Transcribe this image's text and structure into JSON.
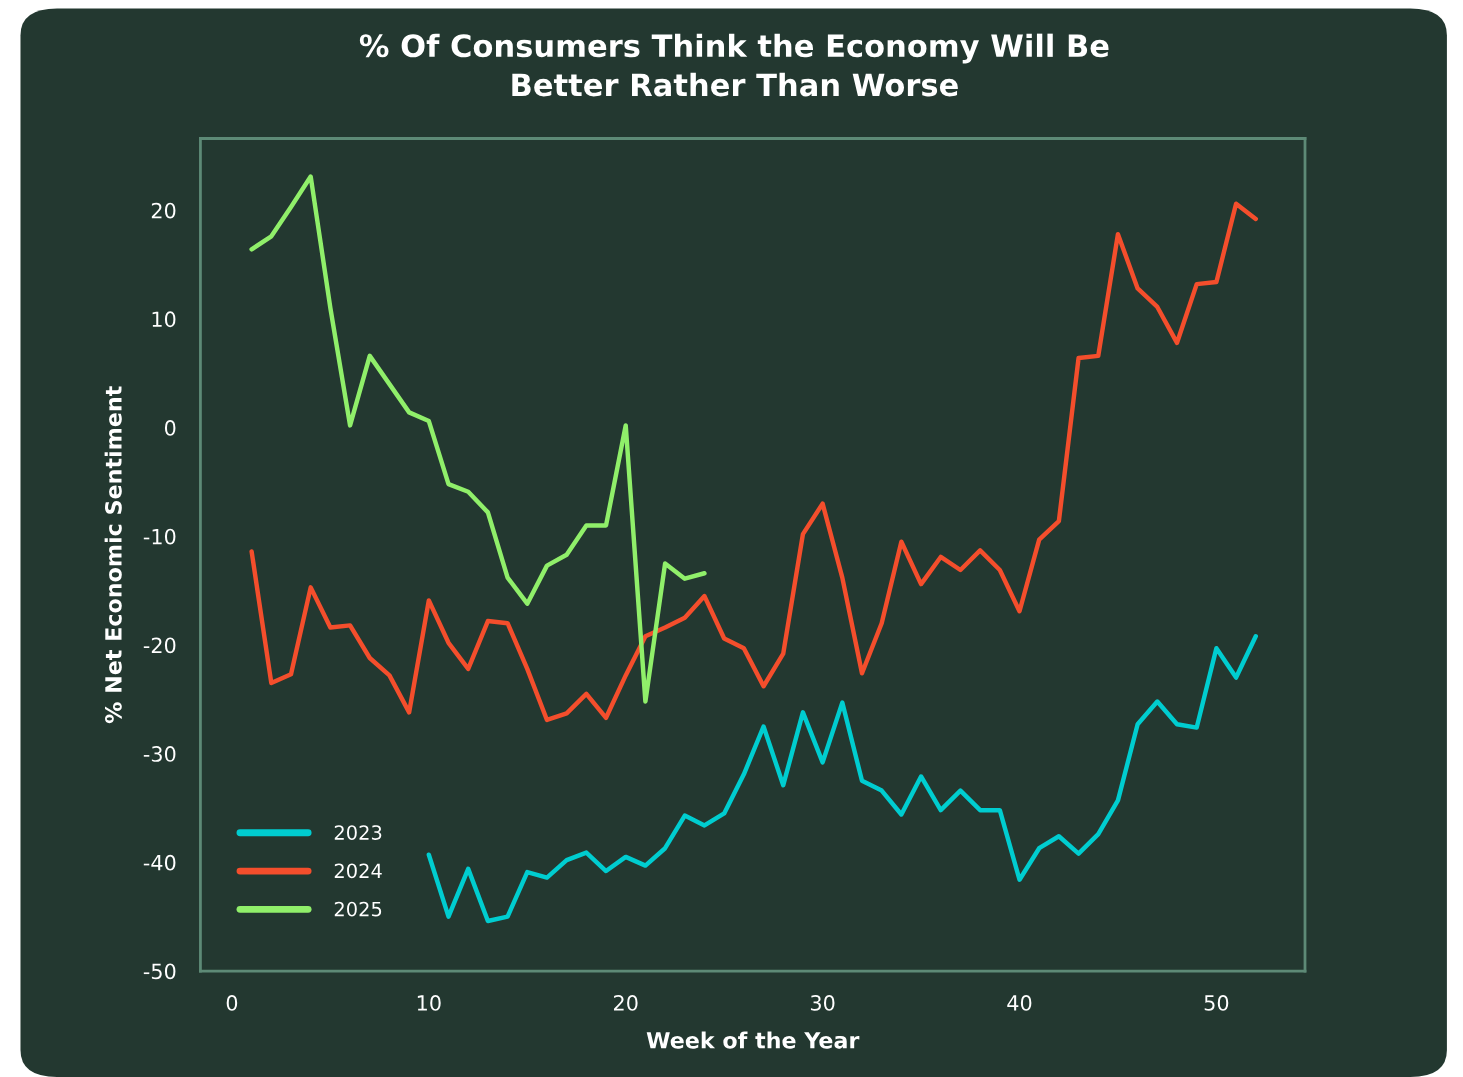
{
  "chart_data": {
    "type": "line",
    "title": "% Of Consumers Think the Economy Will Be\nBetter Rather Than Worse",
    "xlabel": "Week of the Year",
    "ylabel": "% Net Economic Sentiment",
    "series": [
      {
        "name": "2023",
        "color": "#00cdd0",
        "x": [
          10,
          11,
          12,
          13,
          14,
          15,
          16,
          17,
          18,
          19,
          20,
          21,
          22,
          23,
          24,
          25,
          26,
          27,
          28,
          29,
          30,
          31,
          32,
          33,
          34,
          35,
          36,
          37,
          38,
          39,
          40,
          41,
          42,
          43,
          44,
          45,
          46,
          47,
          48,
          49,
          50,
          51,
          52
        ],
        "values": [
          -39.3,
          -45.0,
          -40.6,
          -45.4,
          -45.0,
          -40.9,
          -41.4,
          -39.8,
          -39.1,
          -40.8,
          -39.5,
          -40.3,
          -38.7,
          -35.7,
          -36.6,
          -35.5,
          -31.9,
          -27.5,
          -32.9,
          -26.2,
          -30.8,
          -25.3,
          -32.5,
          -33.4,
          -35.6,
          -32.1,
          -35.2,
          -33.4,
          -35.2,
          -35.2,
          -41.6,
          -38.7,
          -37.6,
          -39.2,
          -37.4,
          -34.3,
          -27.3,
          -25.2,
          -27.3,
          -27.6,
          -20.3,
          -23.0,
          -19.2
        ]
      },
      {
        "name": "2024",
        "color": "#f44e2c",
        "x": [
          1,
          2,
          3,
          4,
          5,
          6,
          7,
          8,
          9,
          10,
          11,
          12,
          13,
          14,
          15,
          16,
          17,
          18,
          19,
          20,
          21,
          22,
          23,
          24,
          25,
          26,
          27,
          28,
          29,
          30,
          31,
          32,
          33,
          34,
          35,
          36,
          37,
          38,
          39,
          40,
          41,
          42,
          43,
          44,
          45,
          46,
          47,
          48,
          49,
          50,
          51,
          52
        ],
        "values": [
          -11.4,
          -23.5,
          -22.7,
          -14.7,
          -18.4,
          -18.2,
          -21.2,
          -22.8,
          -26.2,
          -15.9,
          -19.8,
          -22.2,
          -17.8,
          -18.0,
          -22.2,
          -26.9,
          -26.3,
          -24.5,
          -26.7,
          -22.8,
          -19.2,
          -18.4,
          -17.5,
          -15.5,
          -19.4,
          -20.3,
          -23.8,
          -20.8,
          -9.8,
          -7.0,
          -13.8,
          -22.6,
          -18.0,
          -10.5,
          -14.4,
          -11.9,
          -13.1,
          -11.3,
          -13.1,
          -16.9,
          -10.3,
          -8.6,
          6.4,
          6.6,
          17.8,
          12.8,
          11.1,
          7.8,
          13.2,
          13.4,
          20.6,
          19.2
        ]
      },
      {
        "name": "2025",
        "color": "#90ef6a",
        "x": [
          1,
          2,
          3,
          4,
          5,
          6,
          7,
          8,
          9,
          10,
          11,
          12,
          13,
          14,
          15,
          16,
          17,
          18,
          19,
          20,
          21,
          22,
          23,
          24
        ],
        "values": [
          16.4,
          17.6,
          20.3,
          23.1,
          11.0,
          0.2,
          6.6,
          4.0,
          1.4,
          0.6,
          -5.2,
          -5.9,
          -7.8,
          -13.8,
          -16.2,
          -12.7,
          -11.7,
          -9.0,
          -9.0,
          0.2,
          -25.2,
          -12.5,
          -13.9,
          -13.4
        ]
      }
    ],
    "xlim": [
      -1.6,
      54.5
    ],
    "ylim": [
      -50,
      26.6
    ],
    "xticks": [
      0,
      10,
      20,
      30,
      40,
      50
    ],
    "yticks": [
      -50,
      -40,
      -30,
      -20,
      -10,
      0,
      10,
      20
    ],
    "grid": false,
    "legend": "bottom left",
    "line_style": "solid",
    "marker": "none"
  }
}
